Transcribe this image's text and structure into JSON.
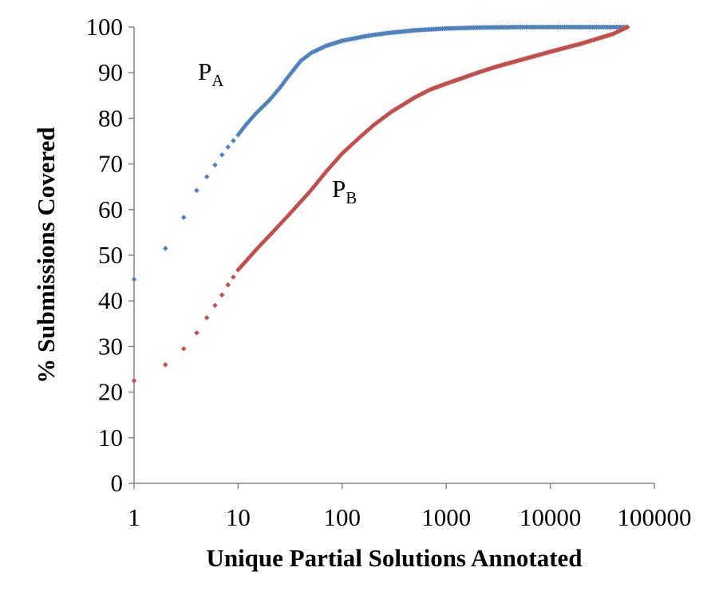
{
  "chart_data": {
    "type": "scatter",
    "title": "",
    "xlabel": "Unique Partial Solutions Annotated",
    "ylabel": "% Submissions Covered",
    "x_scale": "log",
    "xlim": [
      1,
      100000
    ],
    "ylim": [
      0,
      100
    ],
    "x_ticks": [
      "1",
      "10",
      "100",
      "1000",
      "10000",
      "100000"
    ],
    "y_ticks": [
      "0",
      "10",
      "20",
      "30",
      "40",
      "50",
      "60",
      "70",
      "80",
      "90",
      "100"
    ],
    "grid": false,
    "legend": "none",
    "series": [
      {
        "name": "PA",
        "label_main": "P",
        "label_sub": "A",
        "color": "#4f81bd",
        "points": [
          [
            1,
            44.7
          ],
          [
            2,
            51.5
          ],
          [
            3,
            58.3
          ],
          [
            4,
            64.2
          ],
          [
            5,
            67.2
          ],
          [
            6,
            69.8
          ],
          [
            7,
            72.0
          ],
          [
            8,
            73.7
          ],
          [
            9,
            75.1
          ],
          [
            10,
            76.4
          ],
          [
            12,
            78.7
          ],
          [
            15,
            81.2
          ],
          [
            20,
            84.0
          ],
          [
            25,
            86.6
          ],
          [
            30,
            89.0
          ],
          [
            40,
            92.6
          ],
          [
            50,
            94.3
          ],
          [
            70,
            95.9
          ],
          [
            100,
            97.0
          ],
          [
            150,
            97.8
          ],
          [
            200,
            98.3
          ],
          [
            300,
            98.8
          ],
          [
            500,
            99.3
          ],
          [
            1000,
            99.7
          ],
          [
            2000,
            99.9
          ],
          [
            5000,
            100
          ],
          [
            10000,
            100
          ],
          [
            30000,
            100
          ],
          [
            55000,
            100
          ]
        ]
      },
      {
        "name": "PB",
        "label_main": "P",
        "label_sub": "B",
        "color": "#c0504d",
        "points": [
          [
            1,
            22.5
          ],
          [
            2,
            26.0
          ],
          [
            3,
            29.5
          ],
          [
            4,
            33.0
          ],
          [
            5,
            36.3
          ],
          [
            6,
            39.0
          ],
          [
            7,
            41.3
          ],
          [
            8,
            43.5
          ],
          [
            9,
            45.2
          ],
          [
            10,
            46.8
          ],
          [
            12,
            48.8
          ],
          [
            15,
            51.3
          ],
          [
            20,
            54.3
          ],
          [
            30,
            58.6
          ],
          [
            50,
            64.2
          ],
          [
            70,
            68.3
          ],
          [
            100,
            72.3
          ],
          [
            150,
            76.0
          ],
          [
            200,
            78.5
          ],
          [
            300,
            81.5
          ],
          [
            500,
            84.6
          ],
          [
            700,
            86.3
          ],
          [
            1000,
            87.6
          ],
          [
            2000,
            90.0
          ],
          [
            3000,
            91.3
          ],
          [
            5000,
            92.7
          ],
          [
            10000,
            94.6
          ],
          [
            20000,
            96.4
          ],
          [
            40000,
            98.5
          ],
          [
            55000,
            100
          ]
        ]
      }
    ]
  }
}
